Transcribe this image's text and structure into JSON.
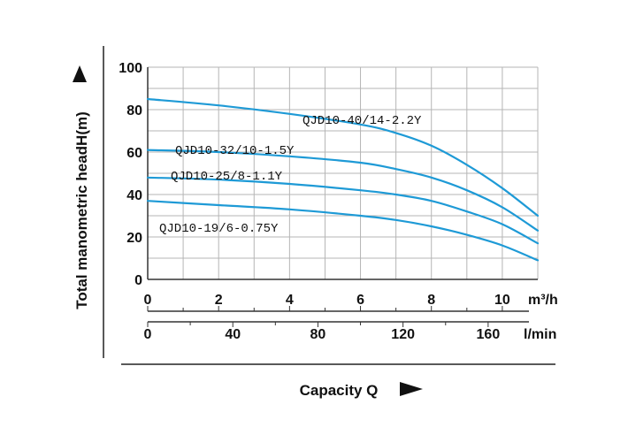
{
  "chart_data": {
    "type": "line",
    "title": "",
    "ylabel": "Total manometric headH(m)",
    "xlabel": "Capacity Q",
    "x_unit_primary": "m³/h",
    "x_unit_secondary": "l/min",
    "xlim": [
      0,
      11
    ],
    "ylim": [
      0,
      100
    ],
    "x_ticks": [
      "0",
      "2",
      "4",
      "6",
      "8",
      "10"
    ],
    "x_ticks_secondary": [
      "0",
      "40",
      "80",
      "120",
      "160"
    ],
    "x_ticks_secondary_values": [
      0,
      40,
      80,
      120,
      160
    ],
    "y_ticks": [
      "0",
      "20",
      "40",
      "60",
      "80",
      "100"
    ],
    "grid": true,
    "line_color": "#1e9ad6",
    "series": [
      {
        "name": "QJD10-40/14-2.2Y",
        "x": [
          0,
          2,
          4,
          6,
          7,
          8,
          9,
          10,
          11
        ],
        "y": [
          85,
          82,
          78,
          73,
          69,
          63,
          54,
          43,
          30
        ]
      },
      {
        "name": "QJD10-32/10-1.5Y",
        "x": [
          0,
          2,
          4,
          6,
          7,
          8,
          9,
          10,
          11
        ],
        "y": [
          61,
          60,
          58,
          55,
          52,
          48,
          42,
          34,
          23
        ]
      },
      {
        "name": "QJD10-25/8-1.1Y",
        "x": [
          0,
          2,
          4,
          6,
          7,
          8,
          9,
          10,
          11
        ],
        "y": [
          48,
          47,
          45,
          42,
          40,
          37,
          32,
          26,
          17
        ]
      },
      {
        "name": "QJD10-19/6-0.75Y",
        "x": [
          0,
          2,
          4,
          6,
          7,
          8,
          9,
          10,
          11
        ],
        "y": [
          37,
          35,
          33,
          30,
          28,
          25,
          21,
          16,
          9
        ]
      }
    ]
  }
}
